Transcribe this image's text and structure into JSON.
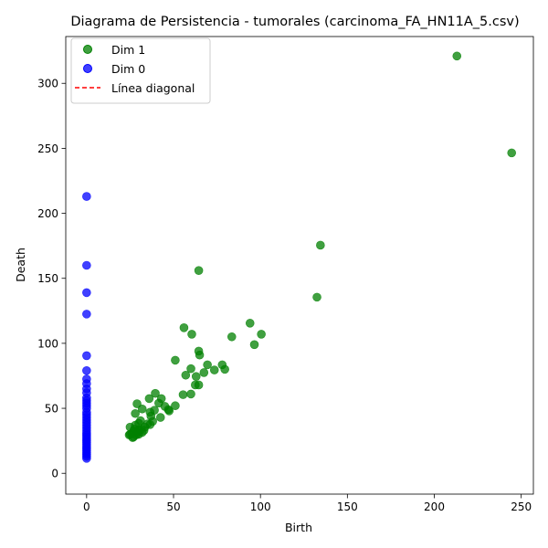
{
  "chart_data": {
    "type": "scatter",
    "title": "Diagrama de Persistencia - tumorales (carcinoma_FA_HN11A_5.csv)",
    "xlabel": "Birth",
    "ylabel": "Death",
    "xlim": [
      -12,
      257
    ],
    "ylim": [
      -16,
      336
    ],
    "xticks": [
      0,
      50,
      100,
      150,
      200,
      250
    ],
    "yticks": [
      0,
      50,
      100,
      150,
      200,
      250,
      300
    ],
    "xtick_labels": [
      "0",
      "50",
      "100",
      "150",
      "200",
      "250"
    ],
    "ytick_labels": [
      "0",
      "50",
      "100",
      "150",
      "200",
      "250",
      "300"
    ],
    "grid": false,
    "legend_position": "top-left",
    "series": [
      {
        "name": "Dim 1",
        "color": "#008000",
        "marker": "circle",
        "points": [
          [
            213,
            321
          ],
          [
            244.5,
            246.5
          ],
          [
            134.5,
            175.5
          ],
          [
            132.5,
            135.5
          ],
          [
            64.5,
            156
          ],
          [
            94,
            115.5
          ],
          [
            100.5,
            107
          ],
          [
            96.5,
            99
          ],
          [
            83.5,
            105
          ],
          [
            56,
            112
          ],
          [
            60.5,
            107
          ],
          [
            64.5,
            94
          ],
          [
            65,
            91
          ],
          [
            51,
            87
          ],
          [
            69.5,
            83.5
          ],
          [
            78,
            83.5
          ],
          [
            79.5,
            80
          ],
          [
            73.5,
            79.5
          ],
          [
            67.5,
            77.5
          ],
          [
            60,
            80.5
          ],
          [
            57,
            75.5
          ],
          [
            63,
            74.5
          ],
          [
            62.5,
            68
          ],
          [
            64.5,
            68
          ],
          [
            60,
            61
          ],
          [
            55.5,
            60.5
          ],
          [
            39.5,
            61.5
          ],
          [
            36,
            57.5
          ],
          [
            43,
            57.5
          ],
          [
            41.5,
            54
          ],
          [
            29,
            53.5
          ],
          [
            45,
            51.5
          ],
          [
            51,
            52
          ],
          [
            47,
            49
          ],
          [
            47.5,
            48
          ],
          [
            39,
            48.5
          ],
          [
            32,
            49.5
          ],
          [
            36.5,
            47
          ],
          [
            28,
            46
          ],
          [
            37,
            44
          ],
          [
            42.5,
            43
          ],
          [
            31,
            40.5
          ],
          [
            38,
            40
          ],
          [
            30,
            38.5
          ],
          [
            35,
            38
          ],
          [
            36.5,
            37.5
          ],
          [
            28,
            37
          ],
          [
            33.5,
            35.5
          ],
          [
            31.5,
            34
          ],
          [
            27.5,
            34
          ],
          [
            25,
            35.5
          ],
          [
            30,
            33.5
          ],
          [
            27,
            32.5
          ],
          [
            29.5,
            31
          ],
          [
            26,
            30.5
          ],
          [
            25,
            30
          ],
          [
            28.5,
            29.5
          ],
          [
            30,
            30
          ],
          [
            27,
            28
          ],
          [
            24.5,
            29.5
          ],
          [
            26.5,
            27.5
          ],
          [
            32,
            31.5
          ],
          [
            29.5,
            32.5
          ],
          [
            33,
            33
          ]
        ]
      },
      {
        "name": "Dim 0",
        "color": "#0000ff",
        "marker": "circle",
        "points": [
          [
            0,
            213
          ],
          [
            0,
            160
          ],
          [
            0,
            139
          ],
          [
            0,
            122.5
          ],
          [
            0,
            90.5
          ],
          [
            0,
            79
          ],
          [
            0,
            72.5
          ],
          [
            0,
            69
          ],
          [
            0,
            65
          ],
          [
            0,
            62
          ],
          [
            0,
            58
          ],
          [
            0,
            56
          ],
          [
            0,
            54
          ],
          [
            0,
            52
          ],
          [
            0,
            50
          ],
          [
            0,
            47
          ],
          [
            0,
            45
          ],
          [
            0,
            43
          ],
          [
            0,
            41
          ],
          [
            0,
            39
          ],
          [
            0,
            37
          ],
          [
            0,
            35
          ],
          [
            0,
            33
          ],
          [
            0,
            31
          ],
          [
            0,
            29.5
          ],
          [
            0,
            28
          ],
          [
            0,
            26.5
          ],
          [
            0,
            25
          ],
          [
            0,
            23.5
          ],
          [
            0,
            22
          ],
          [
            0,
            20.5
          ],
          [
            0,
            19
          ],
          [
            0,
            17.5
          ],
          [
            0,
            16
          ],
          [
            0,
            14.5
          ],
          [
            0,
            13
          ],
          [
            0,
            11.5
          ]
        ]
      }
    ],
    "diagonal": {
      "name": "Línea diagonal",
      "color": "#ff0000",
      "style": "dashed"
    }
  }
}
